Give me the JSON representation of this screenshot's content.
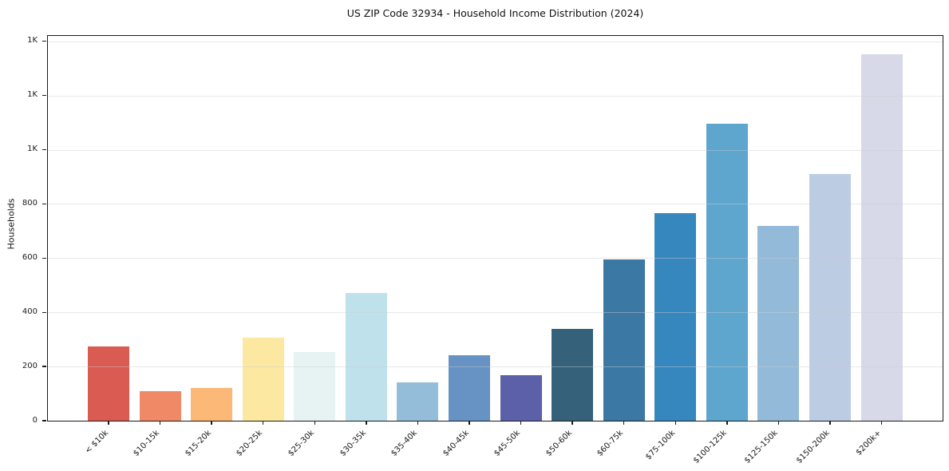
{
  "chart_data": {
    "type": "bar",
    "title": "US ZIP Code 32934 - Household Income Distribution (2024)",
    "xlabel": "",
    "ylabel": "Households",
    "categories": [
      "< $10k",
      "$10-15k",
      "$15-20k",
      "$20-25k",
      "$25-30k",
      "$30-35k",
      "$35-40k",
      "$40-45k",
      "$45-50k",
      "$50-60k",
      "$60-75k",
      "$75-100k",
      "$100-125k",
      "$125-150k",
      "$150-200k",
      "$200k+"
    ],
    "values": [
      273,
      108,
      120,
      307,
      252,
      470,
      142,
      243,
      167,
      340,
      594,
      765,
      1095,
      720,
      910,
      1352
    ],
    "bar_colors": [
      "#d95b52",
      "#f08a66",
      "#fbb876",
      "#fde8a2",
      "#e7f2f3",
      "#bfe1ec",
      "#94bdd9",
      "#6792c4",
      "#5b60a8",
      "#36617b",
      "#3c78a4",
      "#3787bf",
      "#5ea6ce",
      "#94bad9",
      "#bccce3",
      "#d7d9e8"
    ],
    "ylim": [
      0,
      1420
    ],
    "yticks": {
      "values": [
        0,
        200,
        400,
        600,
        800,
        1000,
        1200,
        1400
      ],
      "labels": [
        "0",
        "200",
        "400",
        "600",
        "800",
        "1K",
        "1K",
        "1K"
      ]
    },
    "grid": "horizontal",
    "legend": "none",
    "background_color": "#ffffff",
    "spine_color": "#1a1a1a",
    "grid_color": "#e7e7e7",
    "text_color": "#1a1a1a"
  }
}
